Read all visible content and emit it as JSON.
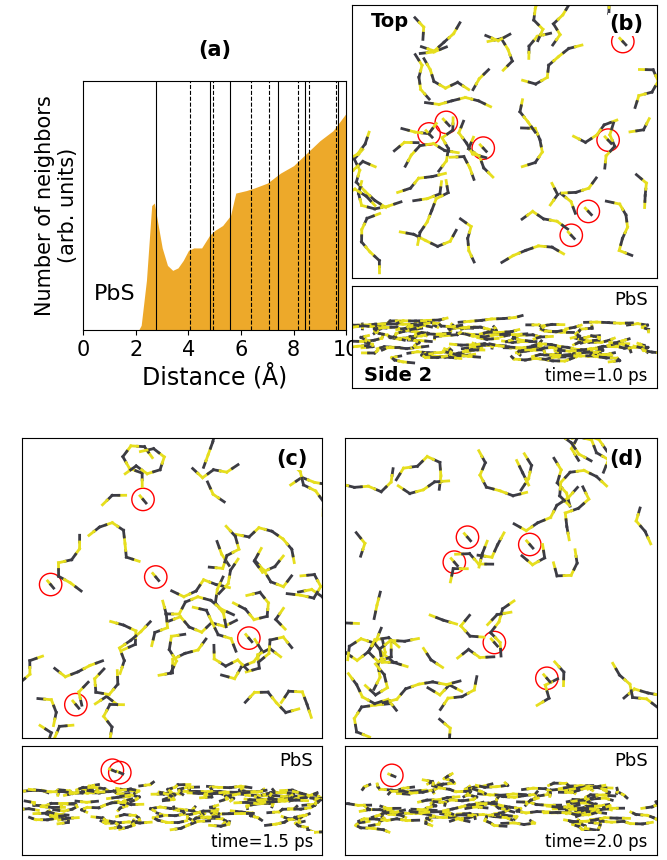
{
  "chart_data": {
    "type": "area",
    "title": "(a)",
    "x_label": "Distance (Å)",
    "y_label": "Number of neighbors\n(arb. units)",
    "annotation": "PbS",
    "x": [
      0,
      2.1,
      2.2,
      2.4,
      2.6,
      2.7,
      2.8,
      3.0,
      3.2,
      3.4,
      3.6,
      3.8,
      4.0,
      4.2,
      4.5,
      4.8,
      5.0,
      5.3,
      5.6,
      5.8,
      6.2,
      6.5,
      7.0,
      7.5,
      8.0,
      8.5,
      9.0,
      9.5,
      10.0
    ],
    "values": [
      0,
      0,
      2,
      20,
      50,
      51,
      45,
      33,
      26,
      24,
      25,
      28,
      32,
      33,
      33,
      38,
      40,
      42,
      46,
      55,
      56,
      57,
      59,
      63,
      66,
      71,
      76,
      80,
      87
    ],
    "color": "#eda92a",
    "xlim": [
      0,
      10
    ],
    "xticks": [
      0,
      2,
      4,
      6,
      8,
      10
    ],
    "ylim": [
      0,
      100
    ],
    "tick_labels": "x",
    "reference_lines": {
      "solid": [
        2.75,
        4.8,
        5.57,
        7.4,
        8.42,
        9.7
      ],
      "dashed": [
        4.07,
        4.95,
        6.37,
        7.07,
        8.17,
        8.57,
        9.6
      ]
    }
  },
  "snapshots": [
    {
      "label": "(b)",
      "view": "Top",
      "side_view": "Side 2",
      "material": "PbS",
      "time": "time=1.0 ps",
      "highlighted_top": 7,
      "highlighted_side": 0
    },
    {
      "label": "(c)",
      "material": "PbS",
      "time": "time=1.5 ps",
      "highlighted_top": 5,
      "highlighted_side": 2
    },
    {
      "label": "(d)",
      "material": "PbS",
      "time": "time=2.0 ps",
      "highlighted_top": 5,
      "highlighted_side": 1
    }
  ]
}
